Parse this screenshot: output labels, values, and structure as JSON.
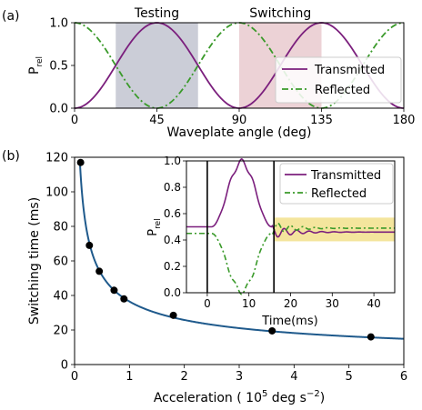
{
  "chart_data": [
    {
      "panel_label": "(a)",
      "type": "line",
      "xlabel": "Waveplate angle (deg)",
      "ylabel_main": "P",
      "ylabel_sub": "rel",
      "xlim": [
        0,
        180
      ],
      "ylim": [
        0.0,
        1.0
      ],
      "xticks": [
        0,
        45,
        90,
        135,
        180
      ],
      "yticks": [
        0.0,
        0.5,
        1.0
      ],
      "ytick_labels": [
        "0.0",
        "0.5",
        "1.0"
      ],
      "regions": [
        {
          "label": "Testing",
          "x0": 22.5,
          "x1": 67.5,
          "color": "#b9bcc9"
        },
        {
          "label": "Switching",
          "x0": 90,
          "x1": 135,
          "color": "#e6c3c8"
        }
      ],
      "series": [
        {
          "name": "Transmitted",
          "color": "#7b1f7d",
          "dash": "solid",
          "function": "sin2(2x)"
        },
        {
          "name": "Reflected",
          "color": "#3a9a2a",
          "dash": "dashdot",
          "function": "cos2(2x)"
        }
      ],
      "legend": "right"
    },
    {
      "panel_label": "(b)",
      "type": "scatter",
      "xlabel": "Acceleration ( 10",
      "xlabel_sup": "5",
      "xlabel_tail": " deg s",
      "xlabel_sup2": "−2",
      "xlabel_end": ")",
      "ylabel": "Switching time (ms)",
      "xlim": [
        0,
        6
      ],
      "ylim": [
        0,
        120
      ],
      "xticks": [
        0,
        1,
        2,
        3,
        4,
        5,
        6
      ],
      "yticks": [
        0,
        20,
        40,
        60,
        80,
        100,
        120
      ],
      "points": [
        {
          "x": 0.11,
          "y": 117
        },
        {
          "x": 0.27,
          "y": 69
        },
        {
          "x": 0.45,
          "y": 54
        },
        {
          "x": 0.72,
          "y": 43
        },
        {
          "x": 0.9,
          "y": 38
        },
        {
          "x": 1.8,
          "y": 28.5
        },
        {
          "x": 3.6,
          "y": 19.5
        },
        {
          "x": 5.4,
          "y": 16
        }
      ],
      "fit": {
        "color": "#1f5a8c",
        "model": "y = a / sqrt(x)",
        "a": 36.5
      },
      "inset": {
        "type": "line",
        "xlabel": "Time(ms)",
        "ylabel_main": "P",
        "ylabel_sub": "rel",
        "xlim": [
          -5,
          45
        ],
        "ylim": [
          0.0,
          1.0
        ],
        "xticks": [
          0,
          10,
          20,
          30,
          40
        ],
        "yticks": [
          0.0,
          0.2,
          0.4,
          0.6,
          0.8,
          1.0
        ],
        "ytick_labels": [
          "0.0",
          "0.2",
          "0.4",
          "0.6",
          "0.8",
          "1.0"
        ],
        "vlines": [
          0,
          16
        ],
        "band": {
          "y0": 0.39,
          "y1": 0.57,
          "x0": 16,
          "color": "#f2e08c"
        },
        "series": [
          {
            "name": "Transmitted",
            "color": "#7b1f7d",
            "dash": "solid"
          },
          {
            "name": "Reflected",
            "color": "#3a9a2a",
            "dash": "dashdot"
          }
        ],
        "legend": "upper right"
      }
    }
  ]
}
